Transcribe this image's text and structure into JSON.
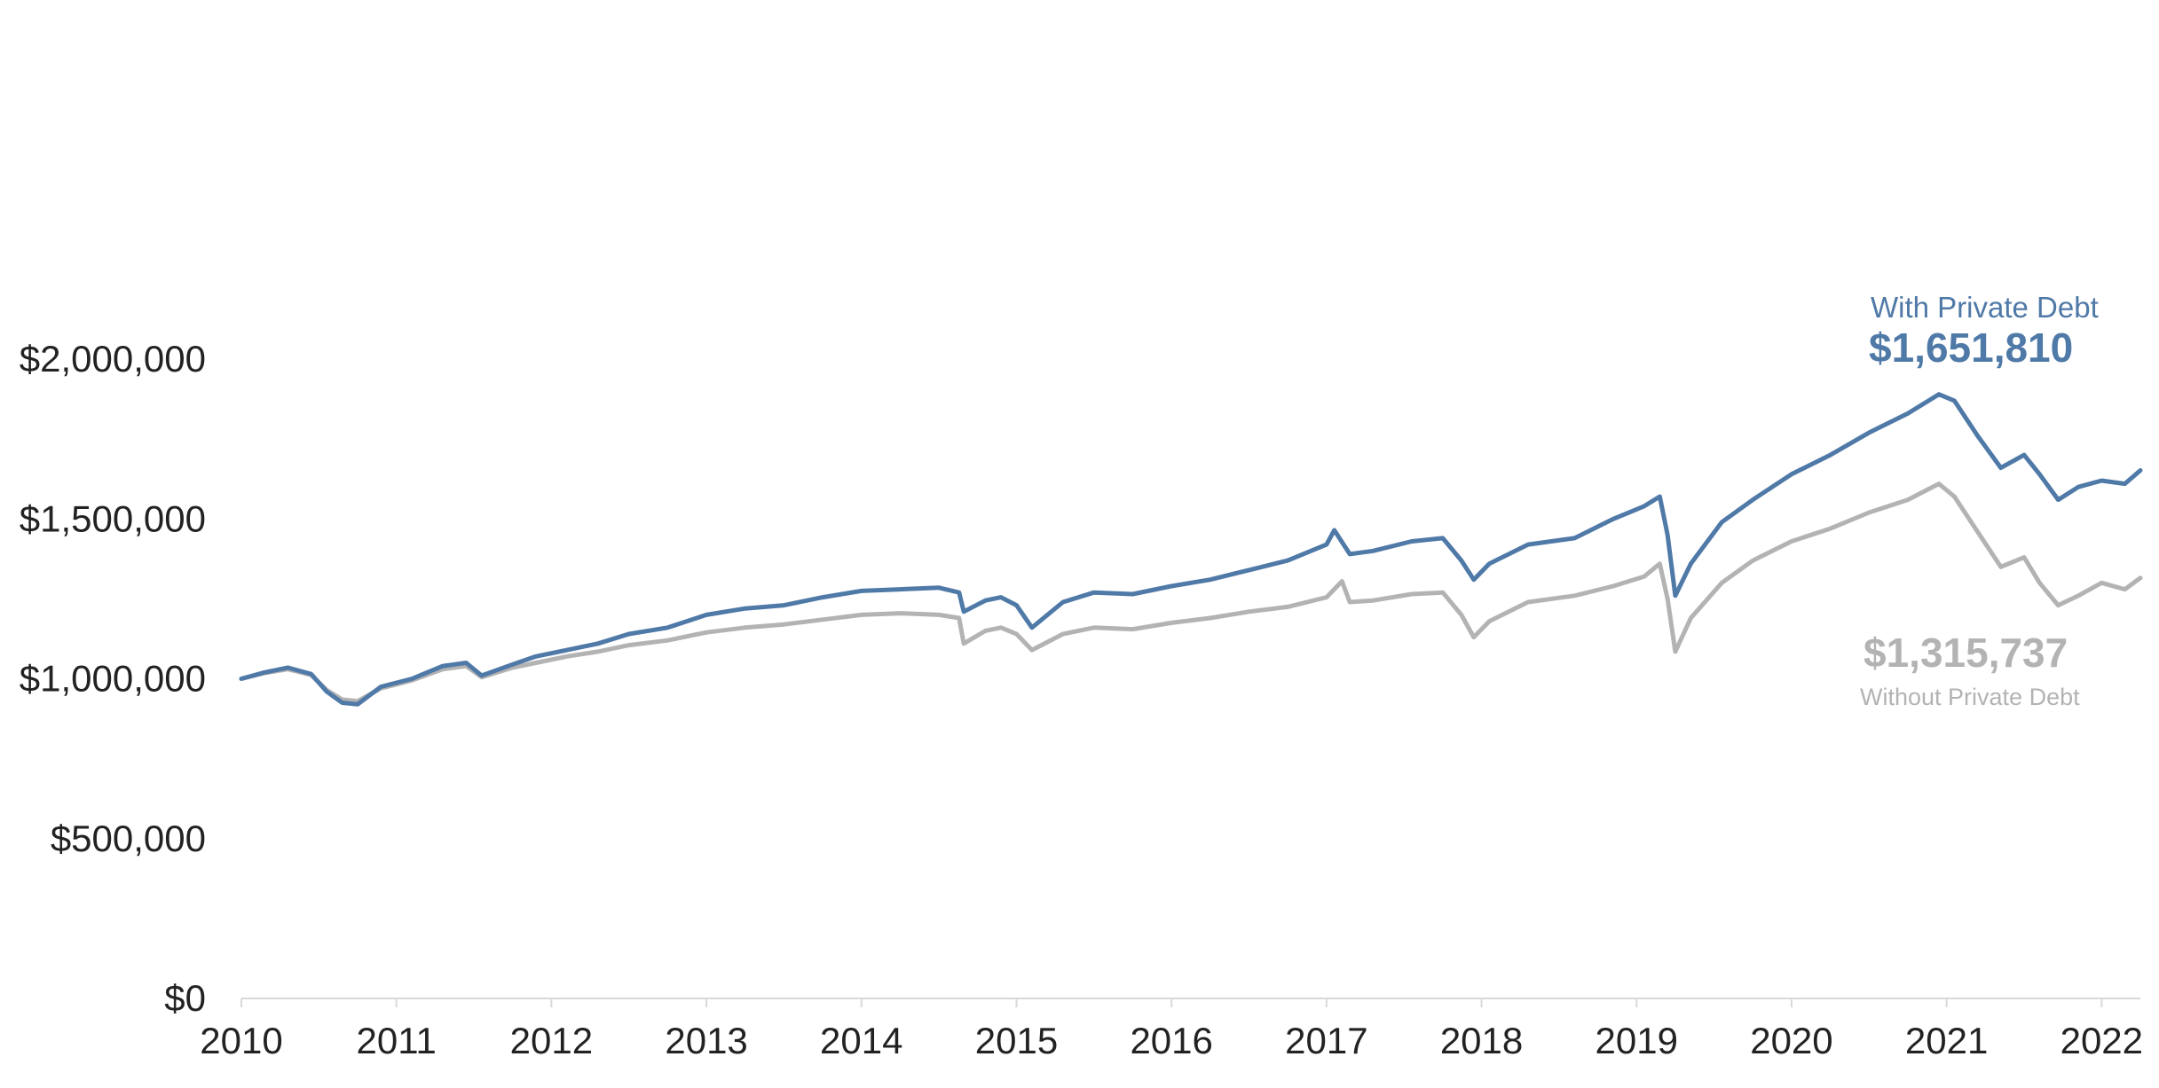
{
  "chart_data": {
    "type": "line",
    "title": "",
    "xlabel": "",
    "ylabel": "",
    "xlim": [
      2010.0,
      2022.25
    ],
    "ylim": [
      0,
      2000000
    ],
    "grid": false,
    "legend": "none",
    "x_ticks": [
      "2010",
      "2011",
      "2012",
      "2013",
      "2014",
      "2015",
      "2016",
      "2017",
      "2018",
      "2019",
      "2020",
      "2021",
      "2022"
    ],
    "y_ticks": [
      "$0",
      "$500,000",
      "$1,000,000",
      "$1,500,000",
      "$2,000,000"
    ],
    "series": [
      {
        "name": "With Private Debt",
        "end_label": "$1,651,810",
        "color": "#4f79a7",
        "points": [
          [
            2010.0,
            1000000
          ],
          [
            2010.15,
            1020000
          ],
          [
            2010.3,
            1035000
          ],
          [
            2010.45,
            1015000
          ],
          [
            2010.55,
            960000
          ],
          [
            2010.65,
            925000
          ],
          [
            2010.75,
            920000
          ],
          [
            2010.9,
            975000
          ],
          [
            2011.1,
            1000000
          ],
          [
            2011.3,
            1040000
          ],
          [
            2011.45,
            1050000
          ],
          [
            2011.55,
            1010000
          ],
          [
            2011.75,
            1045000
          ],
          [
            2011.9,
            1070000
          ],
          [
            2012.1,
            1090000
          ],
          [
            2012.3,
            1110000
          ],
          [
            2012.5,
            1140000
          ],
          [
            2012.75,
            1160000
          ],
          [
            2013.0,
            1200000
          ],
          [
            2013.25,
            1220000
          ],
          [
            2013.5,
            1230000
          ],
          [
            2013.75,
            1255000
          ],
          [
            2014.0,
            1275000
          ],
          [
            2014.25,
            1280000
          ],
          [
            2014.5,
            1285000
          ],
          [
            2014.63,
            1270000
          ],
          [
            2014.66,
            1210000
          ],
          [
            2014.8,
            1245000
          ],
          [
            2014.9,
            1255000
          ],
          [
            2015.0,
            1230000
          ],
          [
            2015.1,
            1160000
          ],
          [
            2015.3,
            1240000
          ],
          [
            2015.5,
            1270000
          ],
          [
            2015.75,
            1265000
          ],
          [
            2016.0,
            1290000
          ],
          [
            2016.25,
            1310000
          ],
          [
            2016.5,
            1340000
          ],
          [
            2016.75,
            1370000
          ],
          [
            2017.0,
            1420000
          ],
          [
            2017.05,
            1465000
          ],
          [
            2017.15,
            1390000
          ],
          [
            2017.3,
            1400000
          ],
          [
            2017.55,
            1430000
          ],
          [
            2017.75,
            1440000
          ],
          [
            2017.87,
            1370000
          ],
          [
            2017.95,
            1310000
          ],
          [
            2018.05,
            1360000
          ],
          [
            2018.3,
            1420000
          ],
          [
            2018.6,
            1440000
          ],
          [
            2018.85,
            1500000
          ],
          [
            2019.05,
            1540000
          ],
          [
            2019.15,
            1570000
          ],
          [
            2019.2,
            1450000
          ],
          [
            2019.25,
            1260000
          ],
          [
            2019.35,
            1360000
          ],
          [
            2019.55,
            1490000
          ],
          [
            2019.75,
            1560000
          ],
          [
            2020.0,
            1640000
          ],
          [
            2020.25,
            1700000
          ],
          [
            2020.5,
            1770000
          ],
          [
            2020.75,
            1830000
          ],
          [
            2020.95,
            1890000
          ],
          [
            2021.05,
            1870000
          ],
          [
            2021.2,
            1760000
          ],
          [
            2021.35,
            1660000
          ],
          [
            2021.5,
            1700000
          ],
          [
            2021.6,
            1640000
          ],
          [
            2021.72,
            1560000
          ],
          [
            2021.85,
            1600000
          ],
          [
            2022.0,
            1620000
          ],
          [
            2022.15,
            1610000
          ],
          [
            2022.25,
            1651810
          ]
        ]
      },
      {
        "name": "Without Private Debt",
        "end_label": "$1,315,737",
        "color": "#b3b3b3",
        "points": [
          [
            2010.0,
            1000000
          ],
          [
            2010.15,
            1018000
          ],
          [
            2010.3,
            1030000
          ],
          [
            2010.45,
            1012000
          ],
          [
            2010.55,
            965000
          ],
          [
            2010.65,
            935000
          ],
          [
            2010.75,
            930000
          ],
          [
            2010.9,
            970000
          ],
          [
            2011.1,
            995000
          ],
          [
            2011.3,
            1030000
          ],
          [
            2011.45,
            1040000
          ],
          [
            2011.55,
            1005000
          ],
          [
            2011.75,
            1035000
          ],
          [
            2011.9,
            1050000
          ],
          [
            2012.1,
            1070000
          ],
          [
            2012.3,
            1085000
          ],
          [
            2012.5,
            1105000
          ],
          [
            2012.75,
            1120000
          ],
          [
            2013.0,
            1145000
          ],
          [
            2013.25,
            1160000
          ],
          [
            2013.5,
            1170000
          ],
          [
            2013.75,
            1185000
          ],
          [
            2014.0,
            1200000
          ],
          [
            2014.25,
            1205000
          ],
          [
            2014.5,
            1200000
          ],
          [
            2014.63,
            1190000
          ],
          [
            2014.66,
            1110000
          ],
          [
            2014.8,
            1150000
          ],
          [
            2014.9,
            1160000
          ],
          [
            2015.0,
            1140000
          ],
          [
            2015.1,
            1090000
          ],
          [
            2015.3,
            1140000
          ],
          [
            2015.5,
            1160000
          ],
          [
            2015.75,
            1155000
          ],
          [
            2016.0,
            1175000
          ],
          [
            2016.25,
            1190000
          ],
          [
            2016.5,
            1210000
          ],
          [
            2016.75,
            1225000
          ],
          [
            2017.0,
            1255000
          ],
          [
            2017.1,
            1305000
          ],
          [
            2017.15,
            1240000
          ],
          [
            2017.3,
            1245000
          ],
          [
            2017.55,
            1265000
          ],
          [
            2017.75,
            1270000
          ],
          [
            2017.87,
            1200000
          ],
          [
            2017.95,
            1130000
          ],
          [
            2018.05,
            1180000
          ],
          [
            2018.3,
            1240000
          ],
          [
            2018.6,
            1260000
          ],
          [
            2018.85,
            1290000
          ],
          [
            2019.05,
            1320000
          ],
          [
            2019.15,
            1360000
          ],
          [
            2019.2,
            1250000
          ],
          [
            2019.25,
            1085000
          ],
          [
            2019.35,
            1190000
          ],
          [
            2019.55,
            1300000
          ],
          [
            2019.75,
            1370000
          ],
          [
            2020.0,
            1430000
          ],
          [
            2020.25,
            1470000
          ],
          [
            2020.5,
            1520000
          ],
          [
            2020.75,
            1560000
          ],
          [
            2020.95,
            1610000
          ],
          [
            2021.05,
            1570000
          ],
          [
            2021.2,
            1460000
          ],
          [
            2021.35,
            1350000
          ],
          [
            2021.5,
            1380000
          ],
          [
            2021.6,
            1300000
          ],
          [
            2021.72,
            1230000
          ],
          [
            2021.85,
            1260000
          ],
          [
            2022.0,
            1300000
          ],
          [
            2022.15,
            1280000
          ],
          [
            2022.25,
            1315737
          ]
        ]
      }
    ]
  }
}
